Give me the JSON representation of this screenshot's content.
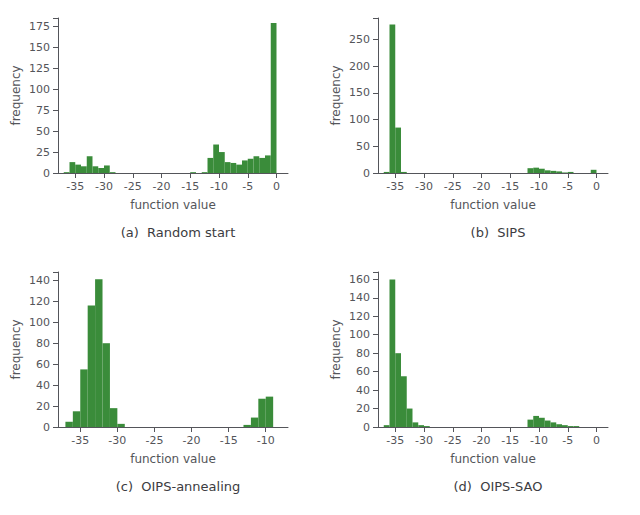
{
  "chart_data": [
    {
      "type": "bar",
      "title": "(a)  Random start",
      "xlabel": "function value",
      "ylabel": "frequency",
      "bins": [
        -37,
        -36,
        -35,
        -34,
        -33,
        -32,
        -31,
        -30,
        -29,
        -28,
        -27,
        -26,
        -25,
        -24,
        -23,
        -22,
        -21,
        -20,
        -19,
        -18,
        -17,
        -16,
        -15,
        -14,
        -13,
        -12,
        -11,
        -10,
        -9,
        -8,
        -7,
        -6,
        -5,
        -4,
        -3,
        -2,
        -1,
        0
      ],
      "values": [
        1,
        13,
        10,
        8,
        20,
        8,
        6,
        9,
        1,
        0,
        0,
        0,
        0,
        0,
        0,
        0,
        0,
        0,
        0,
        0,
        0,
        0,
        1,
        0,
        1,
        18,
        34,
        25,
        13,
        12,
        10,
        15,
        17,
        20,
        18,
        21,
        179
      ],
      "xlim": [
        -38,
        2
      ],
      "ylim": [
        0,
        185
      ],
      "xticks": [
        -35,
        -30,
        -25,
        -20,
        -15,
        -10,
        -5,
        0
      ],
      "yticks": [
        0,
        25,
        50,
        75,
        100,
        125,
        150,
        175
      ],
      "color": "#3a8c3a",
      "grid": false
    },
    {
      "type": "bar",
      "title": "(b)  SIPS",
      "xlabel": "function value",
      "ylabel": "frequency",
      "bins": [
        -37,
        -36,
        -35,
        -34,
        -33,
        -32,
        -31,
        -30,
        -29,
        -28,
        -27,
        -26,
        -25,
        -24,
        -23,
        -22,
        -21,
        -20,
        -19,
        -18,
        -17,
        -16,
        -15,
        -14,
        -13,
        -12,
        -11,
        -10,
        -9,
        -8,
        -7,
        -6,
        -5,
        -4,
        -3,
        -2,
        -1,
        0
      ],
      "values": [
        2,
        278,
        85,
        2,
        0,
        0,
        0,
        0,
        0,
        0,
        0,
        0,
        0,
        0,
        0,
        0,
        0,
        0,
        0,
        0,
        0,
        0,
        0,
        0,
        0,
        9,
        10,
        8,
        5,
        4,
        3,
        1,
        2,
        0,
        0,
        0,
        6
      ],
      "xlim": [
        -38,
        2
      ],
      "ylim": [
        0,
        290
      ],
      "xticks": [
        -35,
        -30,
        -25,
        -20,
        -15,
        -10,
        -5,
        0
      ],
      "yticks": [
        0,
        50,
        100,
        150,
        200,
        250
      ],
      "color": "#3a8c3a",
      "grid": false
    },
    {
      "type": "bar",
      "title": "(c)  OIPS-annealing",
      "xlabel": "function value",
      "ylabel": "frequency",
      "bins": [
        -37,
        -36,
        -35,
        -34,
        -33,
        -32,
        -31,
        -30,
        -29,
        -28,
        -27,
        -26,
        -25,
        -24,
        -23,
        -22,
        -21,
        -20,
        -19,
        -18,
        -17,
        -16,
        -15,
        -14,
        -13,
        -12,
        -11,
        -10,
        -9,
        -8
      ],
      "values": [
        5,
        15,
        55,
        116,
        141,
        80,
        18,
        3,
        0,
        0,
        0,
        0,
        0,
        0,
        0,
        0,
        0,
        0,
        0,
        0,
        0,
        0,
        0,
        0,
        2,
        9,
        27,
        29,
        0
      ],
      "xlim": [
        -38,
        -7
      ],
      "ylim": [
        0,
        148
      ],
      "xticks": [
        -35,
        -30,
        -25,
        -20,
        -15,
        -10
      ],
      "yticks": [
        0,
        20,
        40,
        60,
        80,
        100,
        120,
        140
      ],
      "color": "#3a8c3a",
      "grid": false
    },
    {
      "type": "bar",
      "title": "(d)  OIPS-SAO",
      "xlabel": "function value",
      "ylabel": "frequency",
      "bins": [
        -37,
        -36,
        -35,
        -34,
        -33,
        -32,
        -31,
        -30,
        -29,
        -28,
        -27,
        -26,
        -25,
        -24,
        -23,
        -22,
        -21,
        -20,
        -19,
        -18,
        -17,
        -16,
        -15,
        -14,
        -13,
        -12,
        -11,
        -10,
        -9,
        -8,
        -7,
        -6,
        -5,
        -4,
        -3,
        -2,
        -1,
        0
      ],
      "values": [
        2,
        160,
        80,
        55,
        20,
        5,
        2,
        1,
        0,
        0,
        0,
        0,
        0,
        0,
        0,
        0,
        0,
        0,
        0,
        0,
        0,
        0,
        0,
        0,
        0,
        8,
        12,
        10,
        7,
        5,
        3,
        2,
        1,
        1,
        0,
        0,
        0
      ],
      "xlim": [
        -38,
        2
      ],
      "ylim": [
        0,
        168
      ],
      "xticks": [
        -35,
        -30,
        -25,
        -20,
        -15,
        -10,
        -5,
        0
      ],
      "yticks": [
        0,
        20,
        40,
        60,
        80,
        100,
        120,
        140,
        160
      ],
      "color": "#3a8c3a",
      "grid": false
    }
  ]
}
